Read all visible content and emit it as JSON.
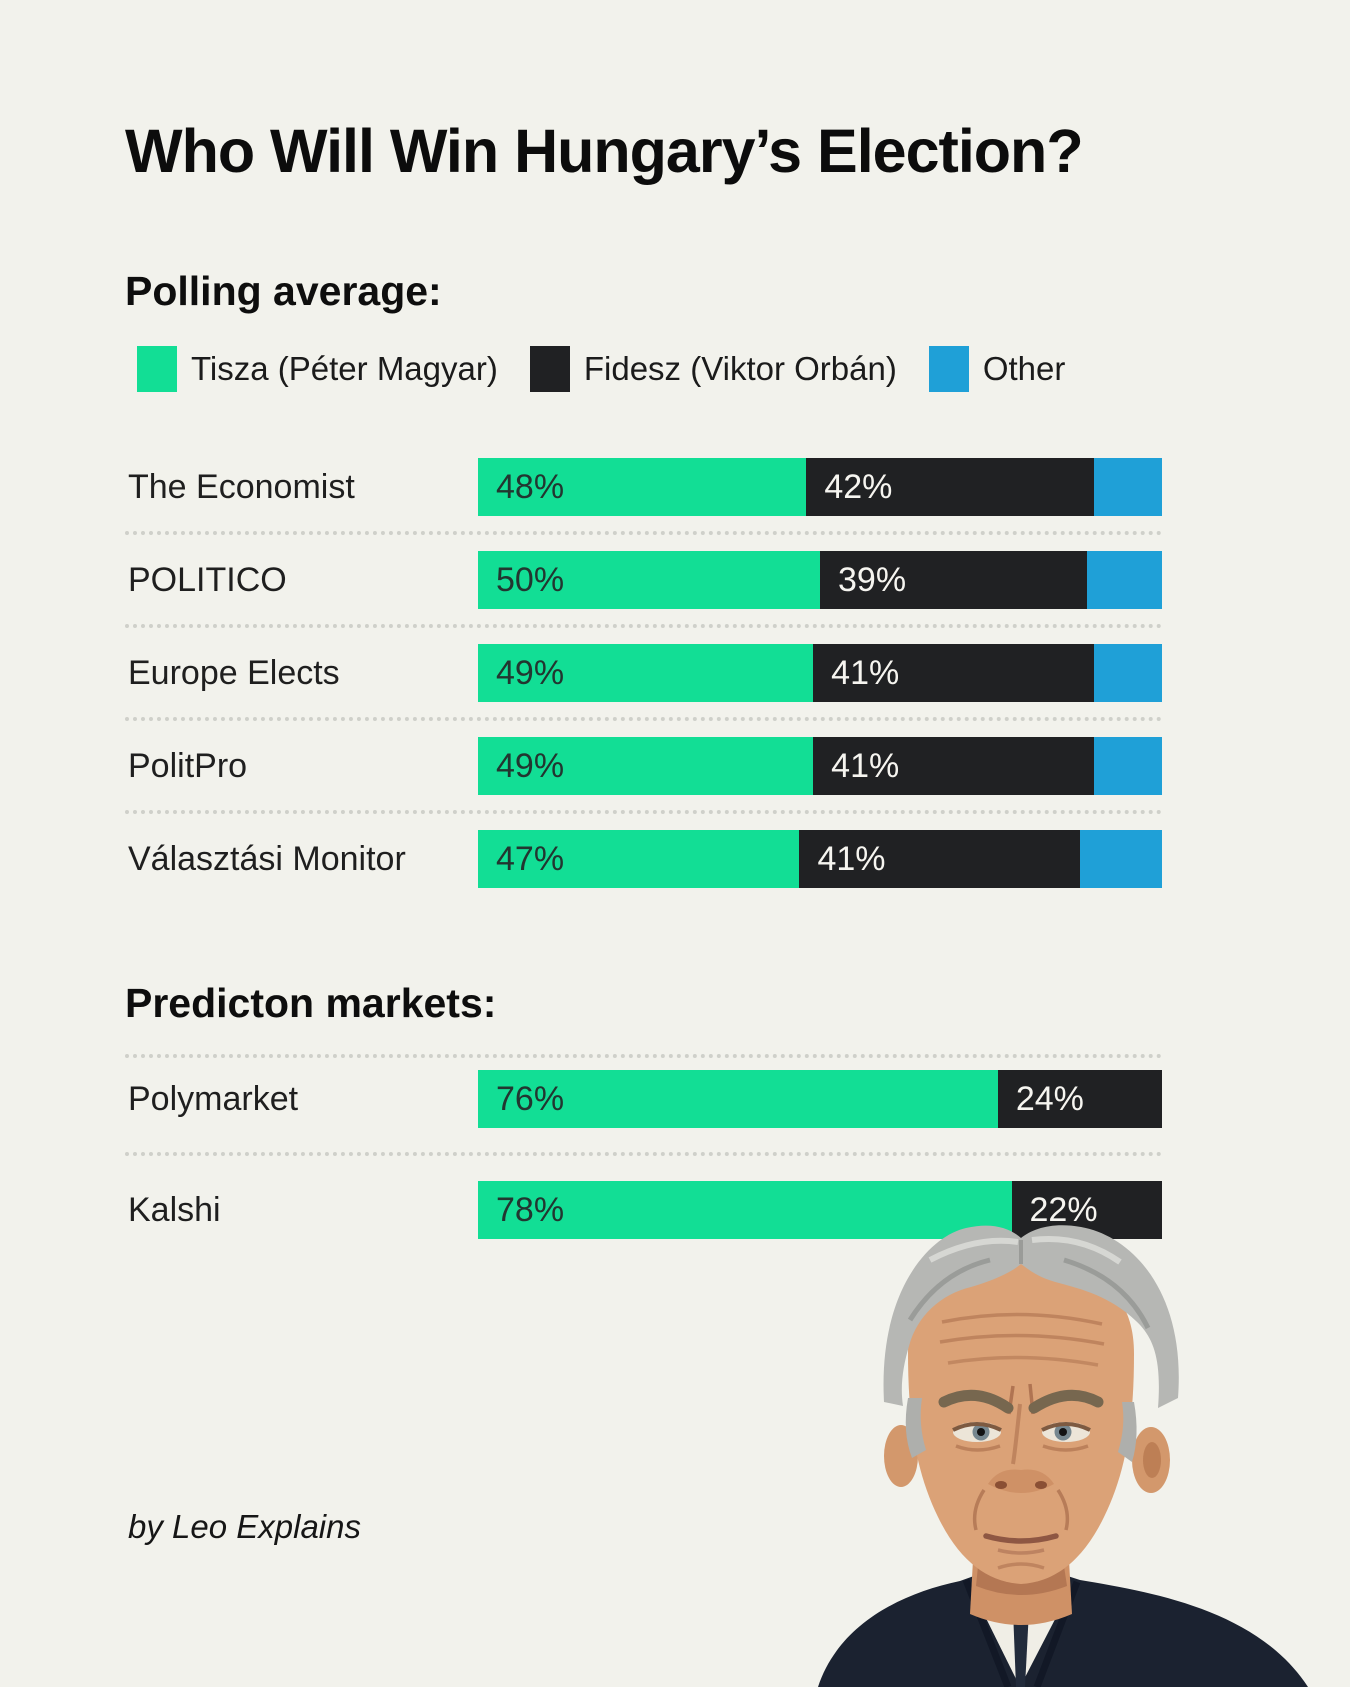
{
  "title": "Who Will Win Hungary’s Election?",
  "byline": "by Leo Explains",
  "portrait": {
    "subject": "Viktor Orbán"
  },
  "colors": {
    "background": "#f2f2ec",
    "tisza_green": "#12de95",
    "fidesz_black": "#202123",
    "other_blue": "#1fa0d7",
    "text_on_green": "#223630",
    "text_on_black": "#f6f5f0"
  },
  "polling": {
    "heading": "Polling average:",
    "legend": [
      {
        "label": "Tisza (Péter Magyar)",
        "color": "#12de95"
      },
      {
        "label": "Fidesz (Viktor Orbán)",
        "color": "#202123"
      },
      {
        "label": "Other",
        "color": "#1fa0d7"
      }
    ],
    "rows": [
      {
        "source": "The Economist",
        "tisza": 48,
        "fidesz": 42,
        "other": 10,
        "tisza_label": "48%",
        "fidesz_label": "42%"
      },
      {
        "source": "POLITICO",
        "tisza": 50,
        "fidesz": 39,
        "other": 11,
        "tisza_label": "50%",
        "fidesz_label": "39%"
      },
      {
        "source": "Europe Elects",
        "tisza": 49,
        "fidesz": 41,
        "other": 10,
        "tisza_label": "49%",
        "fidesz_label": "41%"
      },
      {
        "source": "PolitPro",
        "tisza": 49,
        "fidesz": 41,
        "other": 10,
        "tisza_label": "49%",
        "fidesz_label": "41%"
      },
      {
        "source": "Választási Monitor",
        "tisza": 47,
        "fidesz": 41,
        "other": 12,
        "tisza_label": "47%",
        "fidesz_label": "41%"
      }
    ]
  },
  "markets": {
    "heading": "Predicton markets:",
    "rows": [
      {
        "source": "Polymarket",
        "tisza": 76,
        "fidesz": 24,
        "tisza_label": "76%",
        "fidesz_label": "24%"
      },
      {
        "source": "Kalshi",
        "tisza": 78,
        "fidesz": 22,
        "tisza_label": "78%",
        "fidesz_label": "22%"
      }
    ]
  },
  "chart_data": [
    {
      "type": "bar",
      "subtype": "horizontal-stacked",
      "title": "Polling average:",
      "categories": [
        "The Economist",
        "POLITICO",
        "Europe Elects",
        "PolitPro",
        "Választási Monitor"
      ],
      "series": [
        {
          "name": "Tisza (Péter Magyar)",
          "color": "#12de95",
          "values": [
            48,
            50,
            49,
            49,
            47
          ]
        },
        {
          "name": "Fidesz (Viktor Orbán)",
          "color": "#202123",
          "values": [
            42,
            39,
            41,
            41,
            41
          ]
        },
        {
          "name": "Other",
          "color": "#1fa0d7",
          "values": [
            10,
            11,
            10,
            10,
            12
          ]
        }
      ],
      "value_unit": "%",
      "xlim": [
        0,
        100
      ],
      "grid": false,
      "legend_position": "top",
      "data_labels": "shown for Tisza and Fidesz segments only"
    },
    {
      "type": "bar",
      "subtype": "horizontal-stacked",
      "title": "Predicton markets:",
      "categories": [
        "Polymarket",
        "Kalshi"
      ],
      "series": [
        {
          "name": "Tisza (Péter Magyar)",
          "color": "#12de95",
          "values": [
            76,
            78
          ]
        },
        {
          "name": "Fidesz (Viktor Orbán)",
          "color": "#202123",
          "values": [
            24,
            22
          ]
        }
      ],
      "value_unit": "%",
      "xlim": [
        0,
        100
      ],
      "grid": false,
      "legend_position": "none",
      "data_labels": "all segments"
    }
  ]
}
